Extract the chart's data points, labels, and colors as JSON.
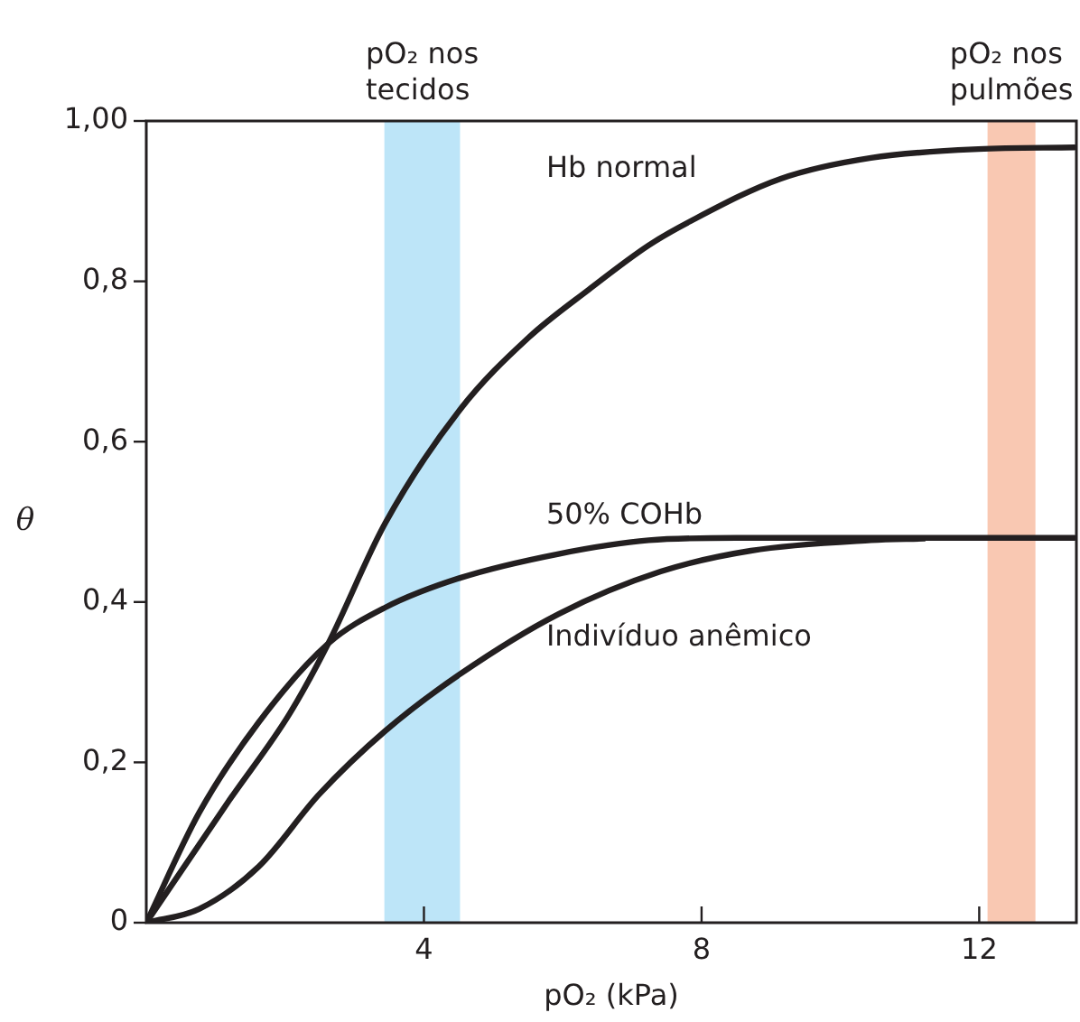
{
  "chart_data": {
    "type": "line",
    "xlabel": "pO₂ (kPa)",
    "ylabel": "θ",
    "xlim": [
      0,
      13.4
    ],
    "ylim": [
      0,
      1
    ],
    "xticks": [
      4,
      8,
      12
    ],
    "yticks": [
      {
        "value": 0,
        "label": "0"
      },
      {
        "value": 0.2,
        "label": "0,2"
      },
      {
        "value": 0.4,
        "label": "0,4"
      },
      {
        "value": 0.6,
        "label": "0,6"
      },
      {
        "value": 0.8,
        "label": "0,8"
      },
      {
        "value": 1,
        "label": "1,00"
      }
    ],
    "marker": "none",
    "line_style": "solid",
    "series": [
      {
        "name": "Hb normal",
        "color": "#231f20",
        "x": [
          0,
          1.19,
          2.06,
          2.62,
          3.44,
          4.52,
          5.51,
          6.38,
          7.24,
          7.84,
          9.14,
          10.44,
          11.99,
          13.37
        ],
        "values": [
          0,
          0.152,
          0.26,
          0.348,
          0.498,
          0.64,
          0.73,
          0.79,
          0.845,
          0.875,
          0.928,
          0.954,
          0.965,
          0.967
        ]
      },
      {
        "name": "50% COHb",
        "color": "#231f20",
        "x": [
          0,
          0.76,
          1.62,
          2.62,
          3.44,
          4.52,
          5.94,
          7.24,
          8.5,
          10,
          12,
          13.37
        ],
        "values": [
          0,
          0.137,
          0.25,
          0.348,
          0.393,
          0.43,
          0.46,
          0.477,
          0.48,
          0.48,
          0.48,
          0.48
        ]
      },
      {
        "name": "Indivíduo anêmico",
        "color": "#231f20",
        "x": [
          0,
          0.76,
          1.62,
          2.49,
          3.44,
          4.52,
          5.94,
          7.41,
          8.71,
          10.44,
          11.2
        ],
        "values": [
          0,
          0.017,
          0.07,
          0.16,
          0.239,
          0.31,
          0.385,
          0.438,
          0.464,
          0.477,
          0.479
        ]
      }
    ],
    "bands": [
      {
        "axis": "x",
        "from": 3.43,
        "to": 4.52,
        "label": "pO₂ nos tecidos",
        "color": "#bde5f8"
      },
      {
        "axis": "x",
        "from": 12.12,
        "to": 12.81,
        "label": "pO₂ nos pulmões",
        "color": "#f9c8b2"
      }
    ]
  }
}
